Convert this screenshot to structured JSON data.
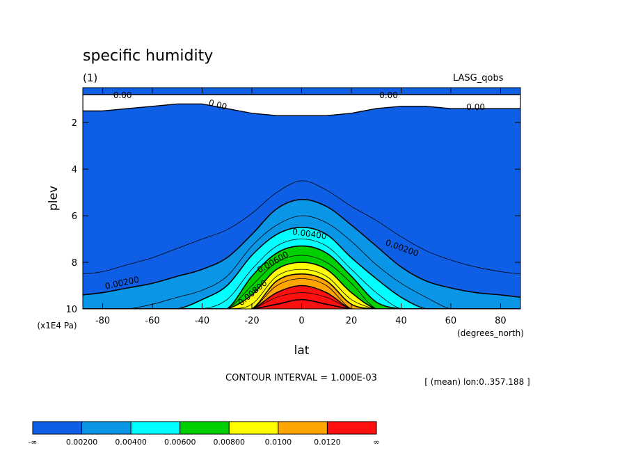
{
  "chart_data": {
    "type": "heatmap",
    "title": "specific humidity",
    "subtitle": "(1)",
    "dataset_label": "LASG_qobs",
    "xlabel": "lat",
    "x_units": "(degrees_north)",
    "ylabel": "plev",
    "y_units": "(x1E4 Pa)",
    "xlim": [
      -88,
      88
    ],
    "ylim": [
      10,
      0.5
    ],
    "x_ticks": [
      "-80",
      "-60",
      "-40",
      "-20",
      "0",
      "20",
      "40",
      "60",
      "80"
    ],
    "x_tick_values": [
      -80,
      -60,
      -40,
      -20,
      0,
      20,
      40,
      60,
      80
    ],
    "y_ticks": [
      "2",
      "4",
      "6",
      "8",
      "10"
    ],
    "y_tick_values": [
      2,
      4,
      6,
      8,
      10
    ],
    "contour_interval_text": "CONTOUR INTERVAL = 1.000E-03",
    "mean_text": "[ (mean) lon:0..357.188 ]",
    "contour_labels": [
      "0.00",
      "0.00",
      "0.00",
      "0.00",
      "0.00200",
      "0.00200",
      "0.00400",
      "0.00600",
      "0.00800"
    ],
    "colorbar": {
      "colors": [
        "#0f5fe6",
        "#0a96e6",
        "#00ffff",
        "#00d000",
        "#ffff00",
        "#ffa500",
        "#ff1010"
      ],
      "labels": [
        "-∞",
        "0.00200",
        "0.00400",
        "0.00600",
        "0.00800",
        "0.0100",
        "0.0120",
        "∞"
      ]
    },
    "contour_levels": [
      0.001,
      0.002,
      0.003,
      0.004,
      0.005,
      0.006,
      0.007,
      0.008,
      0.009,
      0.01,
      0.011,
      0.012,
      0.013,
      0.014
    ],
    "profiles": {
      "lat": [
        -88,
        -80,
        -70,
        -60,
        -50,
        -40,
        -30,
        -20,
        -10,
        0,
        10,
        20,
        30,
        40,
        50,
        60,
        70,
        80,
        88
      ],
      "p_0.001": [
        8.5,
        8.4,
        8.1,
        7.8,
        7.4,
        7.0,
        6.6,
        5.9,
        5.0,
        4.5,
        4.9,
        5.6,
        6.2,
        6.9,
        7.5,
        7.9,
        8.2,
        8.4,
        8.5
      ],
      "p_0.002": [
        9.4,
        9.3,
        9.1,
        8.9,
        8.6,
        8.3,
        7.8,
        6.8,
        5.7,
        5.3,
        5.6,
        6.4,
        7.3,
        8.2,
        8.8,
        9.1,
        9.3,
        9.4,
        9.5
      ],
      "p_0.003": [
        10,
        10,
        10,
        9.8,
        9.5,
        9.2,
        8.6,
        7.3,
        6.4,
        6.0,
        6.3,
        7.1,
        8.1,
        8.9,
        9.5,
        10,
        10,
        10,
        10
      ],
      "p_0.004": [
        10,
        10,
        10,
        10,
        10,
        9.6,
        9.0,
        7.7,
        6.8,
        6.5,
        6.8,
        7.8,
        8.7,
        9.5,
        10,
        10,
        10,
        10,
        10
      ],
      "p_0.005": [
        10,
        10,
        10,
        10,
        10,
        10,
        9.6,
        8.3,
        7.3,
        7.0,
        7.3,
        8.3,
        9.3,
        10,
        10,
        10,
        10,
        10,
        10
      ],
      "p_0.006": [
        10,
        10,
        10,
        10,
        10,
        10,
        10,
        8.6,
        7.6,
        7.3,
        7.6,
        8.6,
        9.7,
        10,
        10,
        10,
        10,
        10,
        10
      ],
      "p_0.007": [
        10,
        10,
        10,
        10,
        10,
        10,
        10,
        9.0,
        8.0,
        7.7,
        8.0,
        8.9,
        10,
        10,
        10,
        10,
        10,
        10,
        10
      ],
      "p_0.008": [
        10,
        10,
        10,
        10,
        10,
        10,
        10,
        9.4,
        8.3,
        8.0,
        8.3,
        9.3,
        10,
        10,
        10,
        10,
        10,
        10,
        10
      ],
      "p_0.009": [
        10,
        10,
        10,
        10,
        10,
        10,
        10,
        9.8,
        8.6,
        8.3,
        8.6,
        9.6,
        10,
        10,
        10,
        10,
        10,
        10,
        10
      ],
      "p_0.010": [
        10,
        10,
        10,
        10,
        10,
        10,
        10,
        10,
        8.8,
        8.5,
        8.8,
        9.8,
        10,
        10,
        10,
        10,
        10,
        10,
        10
      ],
      "p_0.011": [
        10,
        10,
        10,
        10,
        10,
        10,
        10,
        10,
        9.0,
        8.7,
        9.0,
        10,
        10,
        10,
        10,
        10,
        10,
        10,
        10
      ],
      "p_0.012": [
        10,
        10,
        10,
        10,
        10,
        10,
        10,
        10,
        9.3,
        9.0,
        9.3,
        10,
        10,
        10,
        10,
        10,
        10,
        10,
        10
      ],
      "p_0.013": [
        10,
        10,
        10,
        10,
        10,
        10,
        10,
        10,
        9.5,
        9.3,
        9.5,
        10,
        10,
        10,
        10,
        10,
        10,
        10,
        10
      ],
      "p_0.014": [
        10,
        10,
        10,
        10,
        10,
        10,
        10,
        10,
        9.8,
        9.6,
        9.8,
        10,
        10,
        10,
        10,
        10,
        10,
        10,
        10
      ],
      "upper_band_top": [
        0.8,
        0.8,
        0.8,
        0.8,
        0.8,
        0.8,
        0.8,
        0.8,
        0.8,
        0.8,
        0.8,
        0.8,
        0.8,
        0.8,
        0.8,
        0.8,
        0.8,
        0.8,
        0.8
      ],
      "upper_band_bottom": [
        1.5,
        1.5,
        1.4,
        1.3,
        1.2,
        1.2,
        1.4,
        1.6,
        1.7,
        1.7,
        1.7,
        1.6,
        1.4,
        1.3,
        1.3,
        1.4,
        1.4,
        1.4,
        1.4
      ]
    }
  }
}
